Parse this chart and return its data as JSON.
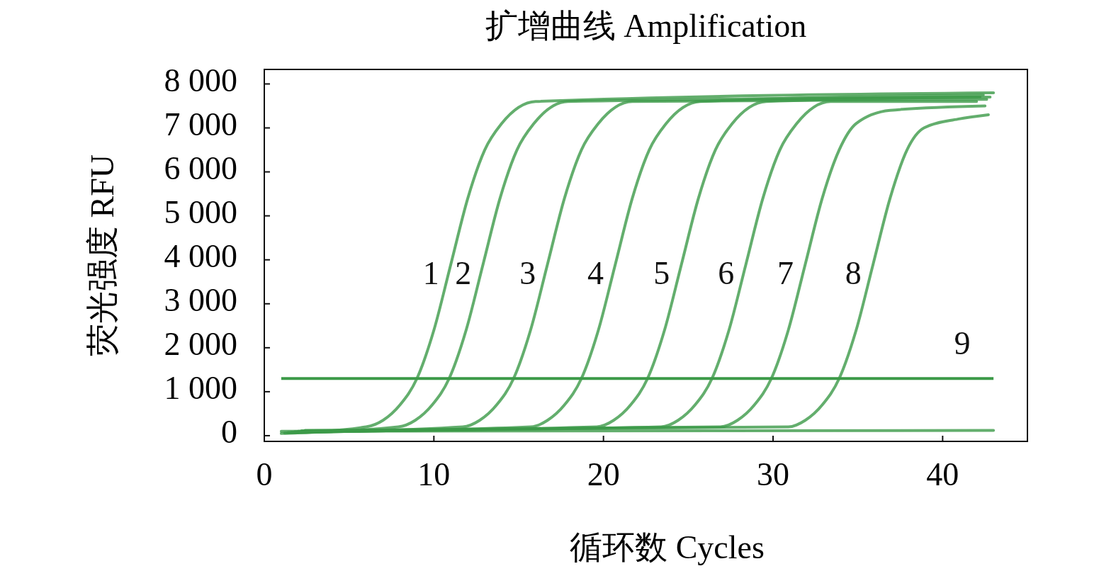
{
  "chart_data": {
    "type": "line",
    "title": "扩增曲线 Amplification",
    "xlabel": "循环数 Cycles",
    "ylabel": "荧光强度 RFU",
    "xlim": [
      0,
      45
    ],
    "xticks": [
      0,
      10,
      20,
      30,
      40
    ],
    "ylim": [
      -130,
      8330
    ],
    "yticks": [
      0,
      {
        "value": 1000,
        "label": "1 000"
      },
      {
        "value": 2000,
        "label": "2 000"
      },
      {
        "value": 3000,
        "label": "3 000"
      },
      {
        "value": 4000,
        "label": "4 000"
      },
      {
        "value": 5000,
        "label": "5 000"
      },
      {
        "value": 6000,
        "label": "6 000"
      },
      {
        "value": 7000,
        "label": "7 000"
      },
      {
        "value": 8000,
        "label": "8 000"
      }
    ],
    "marker": "none",
    "line_style": "solid",
    "series": [
      {
        "color": "#3c9a48",
        "x": [
          1,
          6,
          7,
          8,
          9,
          10,
          11,
          12,
          13,
          14,
          16,
          43
        ],
        "values": [
          50,
          200,
          350,
          700,
          1300,
          2400,
          3900,
          5400,
          6500,
          7100,
          7600,
          7800
        ]
      },
      {
        "color": "#3c9a48",
        "x": [
          1.2,
          7.9,
          8.9,
          9.9,
          10.9,
          11.9,
          12.9,
          13.9,
          14.9,
          15.9,
          17.9,
          42.8
        ],
        "values": [
          60,
          200,
          350,
          700,
          1300,
          2400,
          3900,
          5400,
          6500,
          7100,
          7600,
          7700
        ]
      },
      {
        "color": "#3c9a48",
        "x": [
          1.4,
          11.7,
          12.7,
          13.7,
          14.7,
          15.7,
          16.7,
          17.7,
          18.7,
          19.7,
          21.7,
          42.6
        ],
        "values": [
          70,
          200,
          350,
          700,
          1300,
          2400,
          3900,
          5400,
          6500,
          7100,
          7600,
          7650
        ]
      },
      {
        "color": "#3c9a48",
        "x": [
          1.6,
          15.7,
          16.7,
          17.7,
          18.7,
          19.7,
          20.7,
          21.7,
          22.7,
          23.7,
          25.7,
          42.4
        ],
        "values": [
          80,
          200,
          350,
          700,
          1300,
          2400,
          3900,
          5400,
          6500,
          7100,
          7600,
          7750
        ]
      },
      {
        "color": "#3c9a48",
        "x": [
          1.8,
          19.6,
          20.6,
          21.6,
          22.6,
          23.6,
          24.6,
          25.6,
          26.6,
          27.6,
          29.6,
          42.2
        ],
        "values": [
          90,
          200,
          350,
          700,
          1300,
          2400,
          3900,
          5400,
          6500,
          7100,
          7600,
          7700
        ]
      },
      {
        "color": "#3c9a48",
        "x": [
          2,
          23.4,
          24.4,
          25.4,
          26.4,
          27.4,
          28.4,
          29.4,
          30.4,
          31.4,
          33.4,
          42
        ],
        "values": [
          100,
          200,
          350,
          700,
          1300,
          2400,
          3900,
          5400,
          6500,
          7100,
          7600,
          7600
        ]
      },
      {
        "color": "#3c9a48",
        "x": [
          2.2,
          26.9,
          27.9,
          28.9,
          29.9,
          30.9,
          31.9,
          32.9,
          33.9,
          34.9,
          36.9,
          42.5
        ],
        "values": [
          110,
          200,
          350,
          700,
          1300,
          2400,
          3900,
          5400,
          6500,
          7100,
          7400,
          7500
        ]
      },
      {
        "color": "#3c9a48",
        "x": [
          2.4,
          30.9,
          31.9,
          32.9,
          33.9,
          34.9,
          35.9,
          36.9,
          37.9,
          38.9,
          40.9,
          42.7
        ],
        "values": [
          120,
          200,
          350,
          700,
          1300,
          2400,
          3900,
          5400,
          6500,
          7000,
          7200,
          7300
        ]
      },
      {
        "color": "#3c9a48",
        "x": [
          1,
          43
        ],
        "values": [
          100,
          120
        ]
      }
    ],
    "ref_lines": [
      {
        "axis": "y",
        "value": 1300,
        "color": "#3c9a48"
      }
    ],
    "annotations": [
      "1",
      "2",
      "3",
      "4",
      "5",
      "6",
      "7",
      "8",
      "9"
    ]
  }
}
